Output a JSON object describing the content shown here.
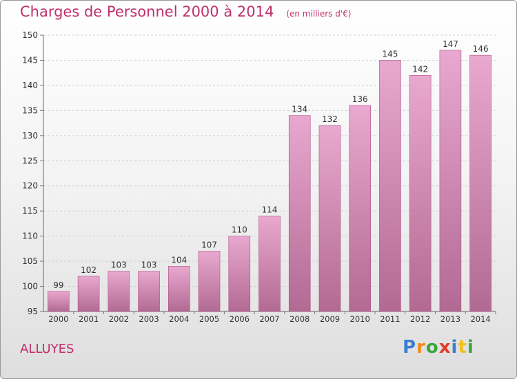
{
  "header": {
    "title": "Charges de Personnel 2000 à 2014",
    "subtitle": "(en milliers d'€)"
  },
  "commune": "ALLUYES",
  "logo": {
    "text": "Proxiti",
    "letters": [
      {
        "ch": "P",
        "color": "#3a7fd4"
      },
      {
        "ch": "r",
        "color": "#f08a1c"
      },
      {
        "ch": "o",
        "color": "#3aa83a"
      },
      {
        "ch": "x",
        "color": "#e53a2a"
      },
      {
        "ch": "i",
        "color": "#3a7fd4"
      },
      {
        "ch": "t",
        "color": "#f0c21c"
      },
      {
        "ch": "i",
        "color": "#3aa83a"
      }
    ]
  },
  "colors": {
    "title": "#c0306a",
    "bar_top": "#e9a8cf",
    "bar_bottom": "#b26a93",
    "bar_stroke": "#b04f84"
  },
  "chart_data": {
    "type": "bar",
    "categories": [
      "2000",
      "2001",
      "2002",
      "2003",
      "2004",
      "2005",
      "2006",
      "2007",
      "2008",
      "2009",
      "2010",
      "2011",
      "2012",
      "2013",
      "2014"
    ],
    "values": [
      99,
      102,
      103,
      103,
      104,
      107,
      110,
      114,
      134,
      132,
      136,
      145,
      142,
      147,
      146
    ],
    "title": "Charges de Personnel 2000 à 2014",
    "subtitle": "(en milliers d'€)",
    "ylim": [
      95,
      150
    ],
    "yticks": [
      95,
      100,
      105,
      110,
      115,
      120,
      125,
      130,
      135,
      140,
      145,
      150
    ],
    "grid": true,
    "data_labels": true
  }
}
